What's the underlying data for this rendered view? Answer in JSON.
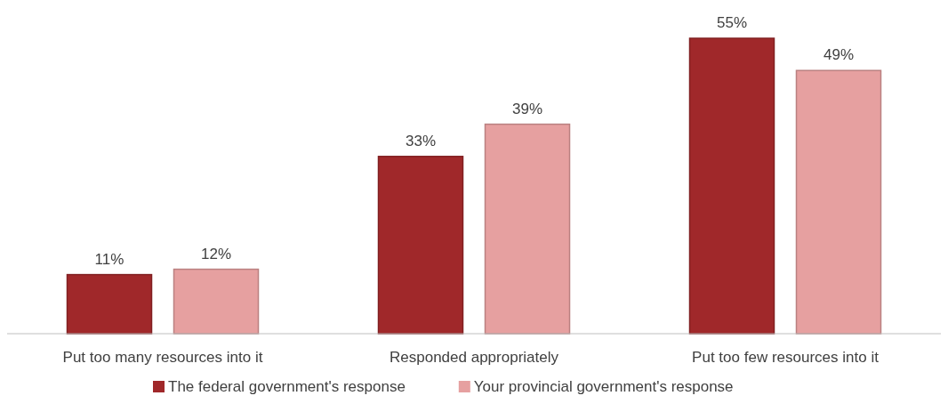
{
  "chart_data": {
    "type": "bar",
    "categories": [
      "Put too many resources into it",
      "Responded appropriately",
      "Put too few resources into it"
    ],
    "series": [
      {
        "name": "The federal government's response",
        "color": "#a0282a",
        "values": [
          11,
          33,
          55
        ],
        "value_labels": [
          "11%",
          "33%",
          "55%"
        ]
      },
      {
        "name": "Your provincial government's response",
        "color": "#e6a0a0",
        "values": [
          12,
          39,
          49
        ],
        "value_labels": [
          "12%",
          "39%",
          "49%"
        ]
      }
    ],
    "legend": "bottom"
  }
}
